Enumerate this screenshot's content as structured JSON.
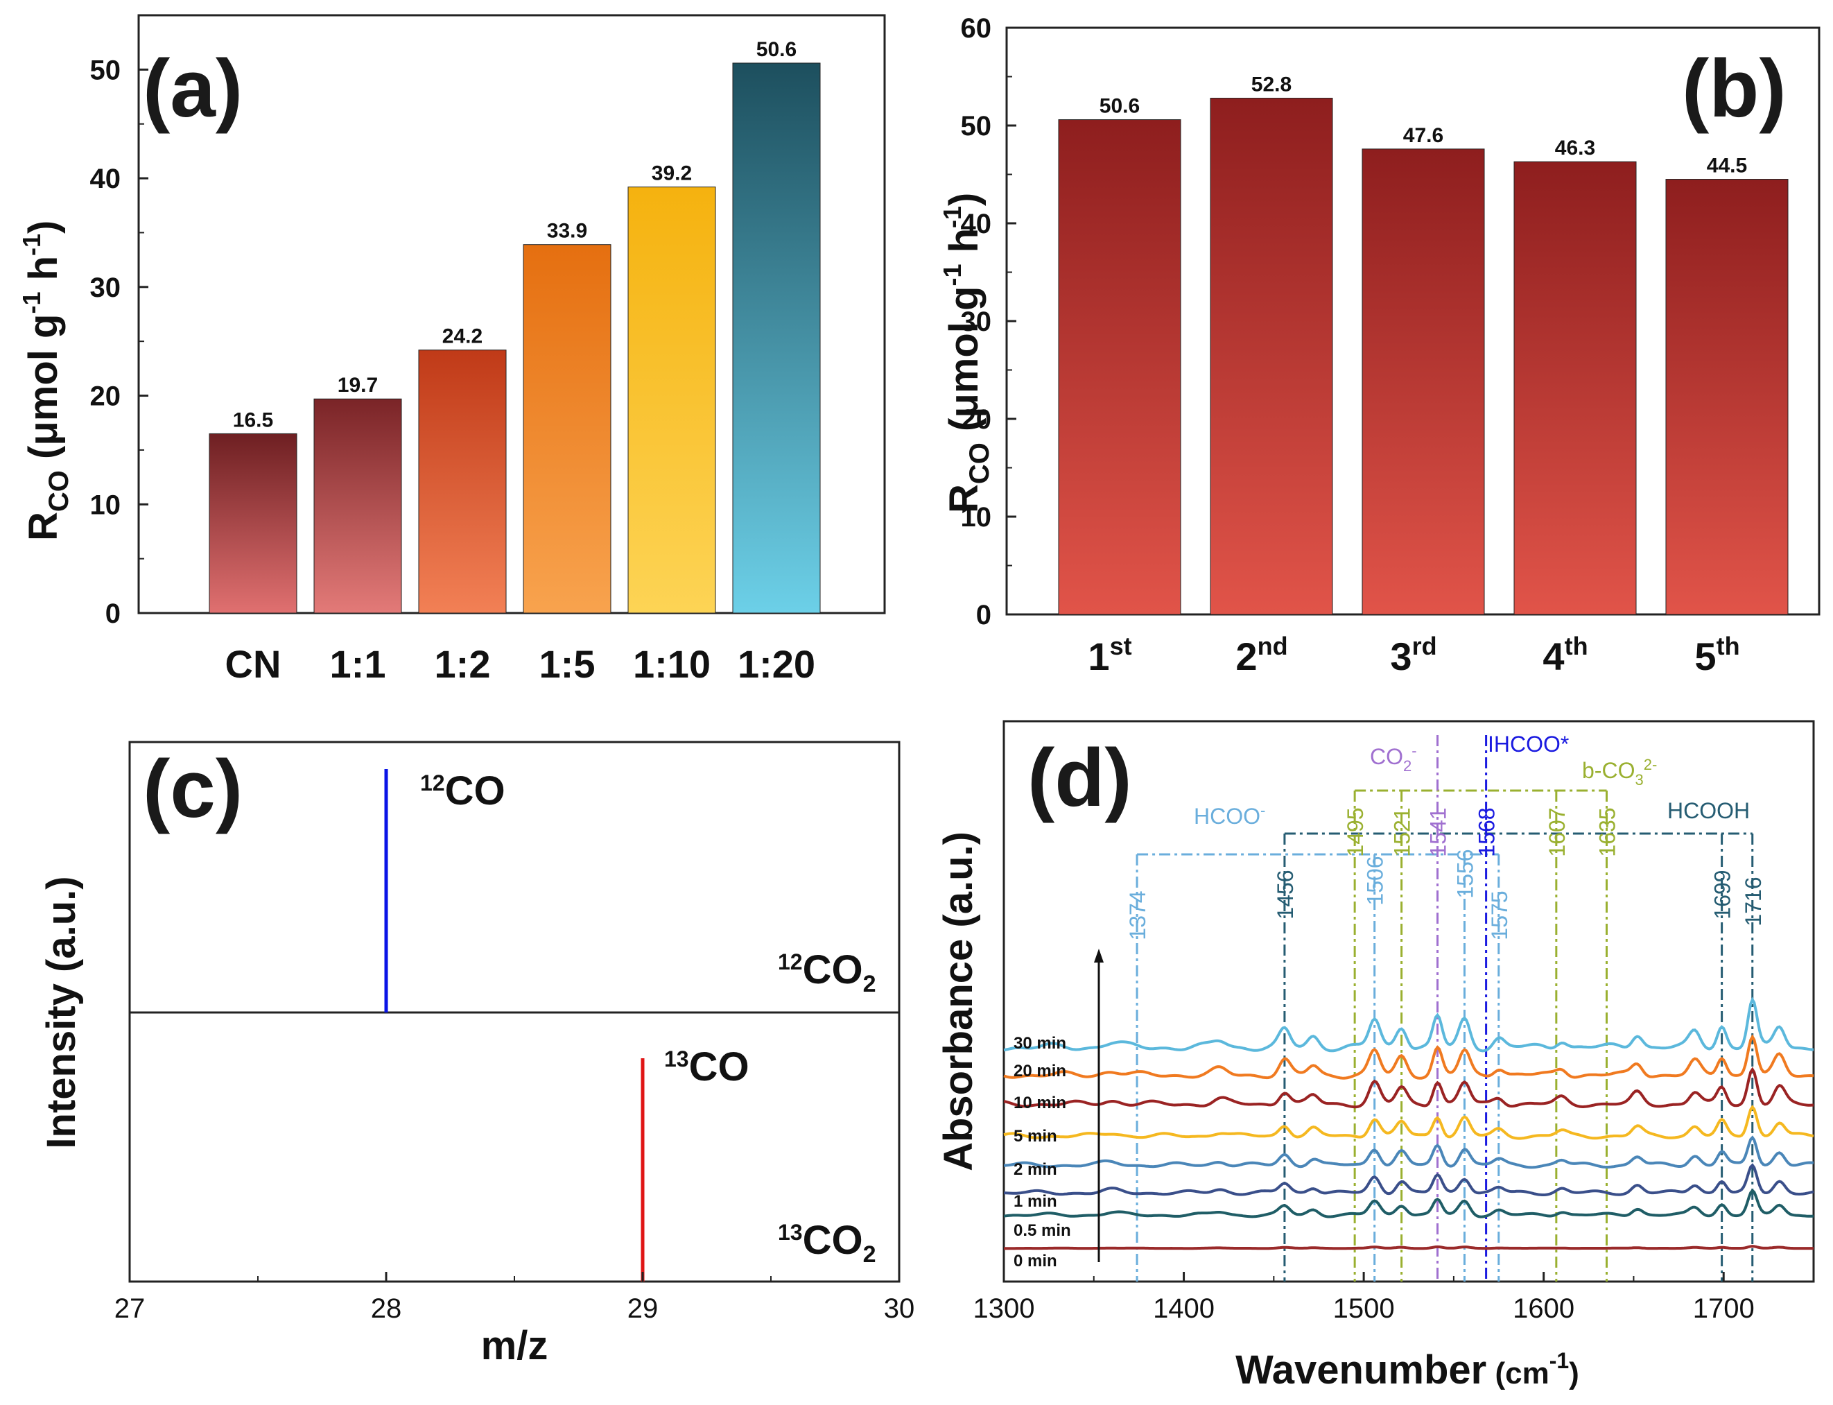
{
  "colors": {
    "a_bars": [
      [
        "#e07070",
        "#6e1f22"
      ],
      [
        "#e37a78",
        "#7a2427"
      ],
      [
        "#f28055",
        "#c03a18"
      ],
      [
        "#f8a34e",
        "#e56f10"
      ],
      [
        "#fdd455",
        "#f5b20f"
      ],
      [
        "#6cd0e8",
        "#1d4f5e"
      ]
    ],
    "b_bar": [
      "#e15449",
      "#8e1e1e"
    ],
    "c_line_12": "#0a14e6",
    "c_line_13": "#e01515",
    "d_series": [
      "#9a2a2a",
      "#1f5d66",
      "#3a4f8a",
      "#4a86b8",
      "#f5b820",
      "#9a2323",
      "#f07a20",
      "#5bb8dc"
    ],
    "d_refs": {
      "hcoo_minus": "#6aaedc",
      "hcooh": "#255c72",
      "co2_minus": "#a070d0",
      "hcoo_star": "#1a1ae0",
      "b_co3": "#9ab030"
    }
  },
  "chart_data": [
    {
      "panel": "(a)",
      "type": "bar",
      "categories": [
        "CN",
        "1:1",
        "1:2",
        "1:5",
        "1:10",
        "1:20"
      ],
      "values": [
        16.5,
        19.7,
        24.2,
        33.9,
        39.2,
        50.6
      ],
      "value_labels": [
        "16.5",
        "19.7",
        "24.2",
        "33.9",
        "39.2",
        "50.6"
      ],
      "ylabel_main": "R",
      "ylabel_sub": "CO",
      "ylabel_unit": " (μmol g",
      "ylabel_unit_sup1": "-1",
      "ylabel_unit_mid": " h",
      "ylabel_unit_sup2": "-1",
      "ylabel_unit_end": ")",
      "ylim": [
        0,
        55
      ],
      "yticks": [
        "0",
        "10",
        "20",
        "30",
        "40",
        "50"
      ]
    },
    {
      "panel": "(b)",
      "type": "bar",
      "categories_base": [
        "1",
        "2",
        "3",
        "4",
        "5"
      ],
      "categories_sup": [
        "st",
        "nd",
        "rd",
        "th",
        "th"
      ],
      "values": [
        50.6,
        52.8,
        47.6,
        46.3,
        44.5
      ],
      "value_labels": [
        "50.6",
        "52.8",
        "47.6",
        "46.3",
        "44.5"
      ],
      "ylabel_main": "R",
      "ylabel_sub": "CO",
      "ylabel_unit": " (μmol g",
      "ylabel_unit_sup1": "-1",
      "ylabel_unit_mid": " h",
      "ylabel_unit_sup2": "-1",
      "ylabel_unit_end": ")",
      "ylim": [
        0,
        60
      ],
      "yticks": [
        "0",
        "10",
        "20",
        "30",
        "40",
        "50",
        "60"
      ]
    },
    {
      "panel": "(c)",
      "type": "line",
      "xlabel": "m/z",
      "ylabel": "Intensity (a.u.)",
      "xlim": [
        27,
        30
      ],
      "xticks": [
        "27",
        "28",
        "29",
        "30"
      ],
      "sticks": [
        {
          "subplot": "top",
          "mz": 28,
          "relative_height": 0.9
        },
        {
          "subplot": "bottom",
          "mz": 29,
          "relative_height": 0.83
        }
      ],
      "labels": {
        "top_peak": {
          "sup": "12",
          "text": "CO"
        },
        "top_gas": {
          "sup": "12",
          "text": "CO",
          "sub": "2"
        },
        "bottom_peak": {
          "sup": "13",
          "text": "CO"
        },
        "bottom_gas": {
          "sup": "13",
          "text": "CO",
          "sub": "2"
        }
      }
    },
    {
      "panel": "(d)",
      "type": "line",
      "xlabel_main": "Wavenumber",
      "xlabel_unit": "(cm",
      "xlabel_unit_sup": "-1",
      "xlabel_unit_end": ")",
      "ylabel": "Absorbance (a.u.)",
      "xlim": [
        1300,
        1750
      ],
      "xticks": [
        "1300",
        "1400",
        "1500",
        "1600",
        "1700"
      ],
      "series_labels": [
        "0 min",
        "0.5 min",
        "1 min",
        "2 min",
        "5 min",
        "10 min",
        "20 min",
        "30 min"
      ],
      "peak_positions": [
        1374,
        1456,
        1495,
        1506,
        1521,
        1541,
        1556,
        1568,
        1575,
        1607,
        1635,
        1699,
        1716
      ],
      "peak_labels": {
        "hcoo_minus": [
          "1374",
          "1506",
          "1556",
          "1575"
        ],
        "hcooh": [
          "1456",
          "1699",
          "1716"
        ],
        "b_co3": [
          "1495",
          "1521",
          "1607",
          "1635"
        ],
        "co2_minus": [
          "1541"
        ],
        "hcoo_star": [
          "1568"
        ]
      },
      "species": {
        "hcoo_minus": "HCOO",
        "hcoo_minus_sup": "-",
        "hcooh": "HCOOH",
        "co2_minus": "CO",
        "co2_minus_sub": "2",
        "co2_minus_sup": "-",
        "hcoo_star": "HCOO*",
        "b_co3": "b-CO",
        "b_co3_sub": "3",
        "b_co3_sup": "2-"
      }
    }
  ]
}
